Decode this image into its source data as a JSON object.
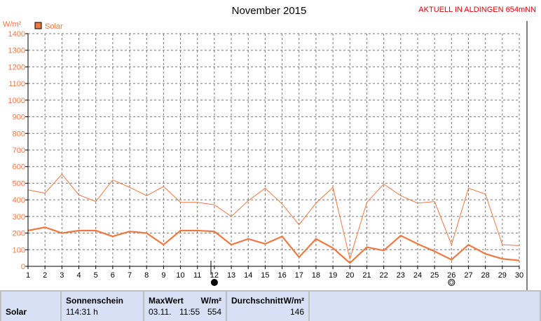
{
  "header": {
    "title": "November 2015",
    "station": "AKTUELL IN ALDINGEN 654mNN"
  },
  "chart_data": {
    "type": "line",
    "ylabel": "W/m²",
    "legend": [
      {
        "name": "Solar",
        "color": "#f07840"
      }
    ],
    "ylim": [
      0,
      1400
    ],
    "yticks": [
      0,
      100,
      200,
      300,
      400,
      500,
      600,
      700,
      800,
      900,
      1000,
      1100,
      1200,
      1300,
      1400
    ],
    "x": [
      1,
      2,
      3,
      4,
      5,
      6,
      7,
      8,
      9,
      10,
      11,
      12,
      13,
      14,
      15,
      16,
      17,
      18,
      19,
      20,
      21,
      22,
      23,
      24,
      25,
      26,
      27,
      28,
      29,
      30
    ],
    "series": [
      {
        "name": "max",
        "color": "#f07840",
        "values": [
          460,
          440,
          554,
          430,
          390,
          520,
          475,
          425,
          480,
          385,
          385,
          370,
          300,
          395,
          470,
          375,
          250,
          380,
          475,
          45,
          385,
          495,
          425,
          380,
          390,
          130,
          470,
          435,
          130,
          125
        ]
      },
      {
        "name": "avg",
        "color": "#f07840",
        "values": [
          215,
          235,
          200,
          215,
          215,
          180,
          210,
          200,
          130,
          215,
          215,
          210,
          130,
          165,
          135,
          180,
          55,
          165,
          110,
          20,
          115,
          95,
          185,
          135,
          90,
          40,
          130,
          75,
          45,
          35
        ]
      }
    ],
    "grid": true,
    "markers": [
      {
        "day": 12,
        "symbol": "full-moon"
      },
      {
        "day": 26,
        "symbol": "new-moon"
      }
    ]
  },
  "stats": {
    "row_label": "Solar",
    "sunshine_header": "Sonnenschein",
    "sunshine_value": "114:31 h",
    "max_header": "MaxWert",
    "max_unit": "W/m²",
    "max_date": "03.11.",
    "max_time": "11:55",
    "max_value": "554",
    "avg_header": "Durchschnitt",
    "avg_unit": "W/m²",
    "avg_value": "146"
  }
}
